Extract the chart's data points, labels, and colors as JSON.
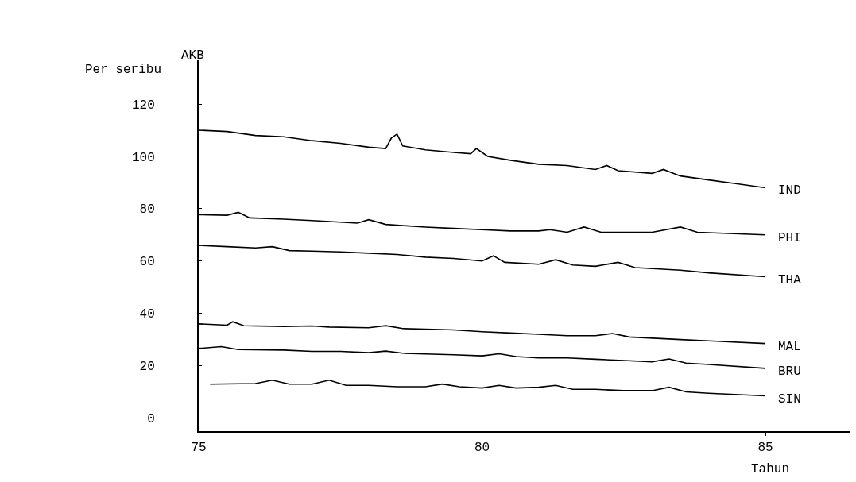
{
  "chart_data": {
    "type": "line",
    "ylabel": "AKB",
    "xlabel": "Tahun",
    "annotations": [
      "Per seribu"
    ],
    "xlim": [
      75,
      86.5
    ],
    "xticks": [
      75,
      80,
      85
    ],
    "ylim": [
      -5,
      137
    ],
    "yticks": [
      0,
      20,
      40,
      60,
      80,
      100,
      120
    ],
    "legend": false,
    "marker": "none",
    "line_style": "solid",
    "series": [
      {
        "name": "IND",
        "color": "#000000",
        "x": [
          75,
          75.5,
          76,
          76.5,
          77,
          77.5,
          78,
          78.3,
          78.4,
          78.5,
          78.6,
          79,
          79.5,
          79.8,
          79.9,
          80.1,
          80.5,
          81,
          81.5,
          82,
          82.2,
          82.4,
          83,
          83.2,
          83.5,
          84,
          84.5,
          85
        ],
        "values": [
          110,
          109.5,
          108,
          107.5,
          106,
          105,
          103.5,
          103,
          107,
          108.5,
          104,
          102.5,
          101.5,
          101,
          103,
          100,
          98.5,
          97,
          96.5,
          95,
          96.5,
          94.5,
          93.5,
          95,
          92.5,
          91,
          89.5,
          88
        ]
      },
      {
        "name": "PHI",
        "color": "#000000",
        "x": [
          75,
          75.5,
          75.7,
          75.9,
          76.5,
          77,
          77.8,
          78,
          78.3,
          79,
          79.5,
          80,
          80.5,
          81,
          81.2,
          81.5,
          81.8,
          82.1,
          83,
          83.5,
          83.8,
          85
        ],
        "values": [
          77.7,
          77.5,
          78.6,
          76.5,
          76,
          75.5,
          74.5,
          75.8,
          74,
          73,
          72.5,
          72,
          71.5,
          71.5,
          72,
          71,
          73,
          71,
          71,
          73,
          71,
          70
        ]
      },
      {
        "name": "THA",
        "color": "#000000",
        "x": [
          75,
          75.5,
          76,
          76.3,
          76.6,
          77,
          77.5,
          78,
          78.5,
          79,
          79.5,
          80,
          80.2,
          80.4,
          81,
          81.3,
          81.6,
          82,
          82.4,
          82.7,
          83.5,
          84,
          85
        ],
        "values": [
          66,
          65.5,
          65,
          65.5,
          64,
          63.8,
          63.5,
          63,
          62.5,
          61.5,
          61,
          60,
          62,
          59.5,
          58.8,
          60.5,
          58.5,
          58,
          59.5,
          57.5,
          56.5,
          55.5,
          54
        ]
      },
      {
        "name": "MAL",
        "color": "#000000",
        "x": [
          75,
          75.5,
          75.6,
          75.8,
          76.5,
          77,
          77.3,
          78,
          78.3,
          78.6,
          79,
          79.5,
          80,
          80.5,
          81,
          81.5,
          82,
          82.3,
          82.6,
          83.5,
          84,
          85
        ],
        "values": [
          36,
          35.5,
          36.8,
          35.3,
          35,
          35.2,
          34.8,
          34.5,
          35.3,
          34.2,
          34,
          33.7,
          33,
          32.5,
          32,
          31.5,
          31.5,
          32.3,
          31,
          30,
          29.5,
          28.5
        ]
      },
      {
        "name": "BRU",
        "color": "#000000",
        "x": [
          75,
          75.4,
          75.7,
          76.5,
          77,
          77.5,
          78,
          78.3,
          78.6,
          79,
          79.5,
          80,
          80.3,
          80.6,
          81,
          81.5,
          82,
          82.5,
          83,
          83.3,
          83.6,
          84,
          85
        ],
        "values": [
          26.6,
          27.3,
          26.2,
          26,
          25.5,
          25.5,
          25,
          25.6,
          24.8,
          24.5,
          24.2,
          23.8,
          24.6,
          23.5,
          23,
          23,
          22.5,
          22,
          21.5,
          22.6,
          21,
          20.5,
          19
        ]
      },
      {
        "name": "SIN",
        "color": "#000000",
        "x": [
          75.2,
          76,
          76.3,
          76.6,
          77,
          77.3,
          77.6,
          78,
          78.5,
          79,
          79.3,
          79.6,
          80,
          80.3,
          80.6,
          81,
          81.3,
          81.6,
          82,
          82.5,
          83,
          83.3,
          83.6,
          84,
          85
        ],
        "values": [
          13,
          13.2,
          14.5,
          13,
          13,
          14.5,
          12.5,
          12.5,
          12,
          12,
          13,
          12,
          11.5,
          12.5,
          11.5,
          11.8,
          12.5,
          11,
          11,
          10.5,
          10.5,
          11.8,
          10,
          9.5,
          8.5
        ]
      }
    ]
  }
}
